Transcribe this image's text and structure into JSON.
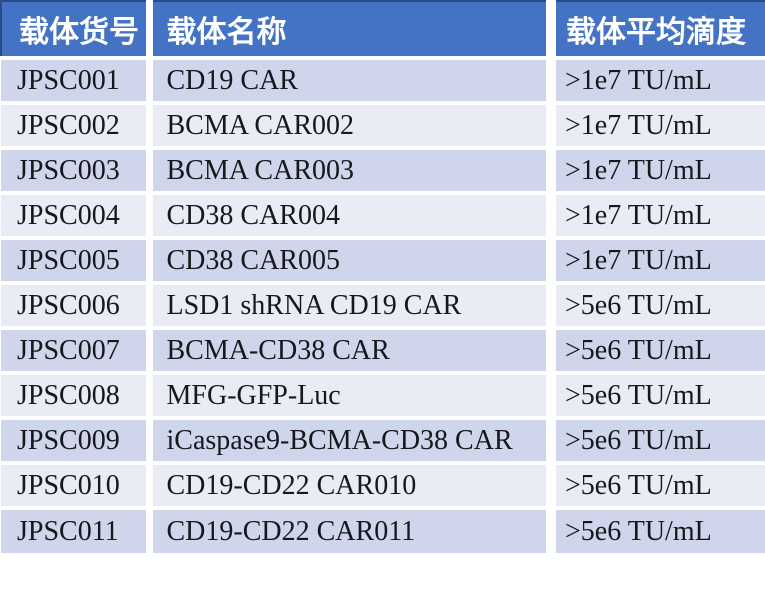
{
  "table": {
    "columns": [
      {
        "id": "catalog",
        "label": "载体货号"
      },
      {
        "id": "name",
        "label": "载体名称"
      },
      {
        "id": "titer",
        "label": "载体平均滴度"
      }
    ],
    "rows": [
      {
        "catalog": "JPSC001",
        "name": "CD19 CAR",
        "titer": ">1e7 TU/mL"
      },
      {
        "catalog": "JPSC002",
        "name": "BCMA CAR002",
        "titer": ">1e7 TU/mL"
      },
      {
        "catalog": "JPSC003",
        "name": "BCMA CAR003",
        "titer": ">1e7 TU/mL"
      },
      {
        "catalog": "JPSC004",
        "name": "CD38 CAR004",
        "titer": ">1e7 TU/mL"
      },
      {
        "catalog": "JPSC005",
        "name": "CD38 CAR005",
        "titer": ">1e7 TU/mL"
      },
      {
        "catalog": "JPSC006",
        "name": "LSD1 shRNA CD19 CAR",
        "titer": ">5e6 TU/mL"
      },
      {
        "catalog": "JPSC007",
        "name": "BCMA-CD38 CAR",
        "titer": ">5e6 TU/mL"
      },
      {
        "catalog": "JPSC008",
        "name": "MFG-GFP-Luc",
        "titer": ">5e6 TU/mL"
      },
      {
        "catalog": "JPSC009",
        "name": "iCaspase9-BCMA-CD38 CAR",
        "titer": ">5e6 TU/mL"
      },
      {
        "catalog": "JPSC010",
        "name": "CD19-CD22 CAR010",
        "titer": ">5e6 TU/mL"
      },
      {
        "catalog": "JPSC011",
        "name": "CD19-CD22 CAR011",
        "titer": ">5e6 TU/mL"
      }
    ]
  },
  "colors": {
    "header_bg": "#4472C4",
    "header_text": "#FFFFFF",
    "header_border": "#2B4C8C",
    "row_band_dark": "#CFD5EA",
    "row_band_light": "#E9EBF5",
    "body_text": "#17171C",
    "separator": "#FFFFFF"
  }
}
